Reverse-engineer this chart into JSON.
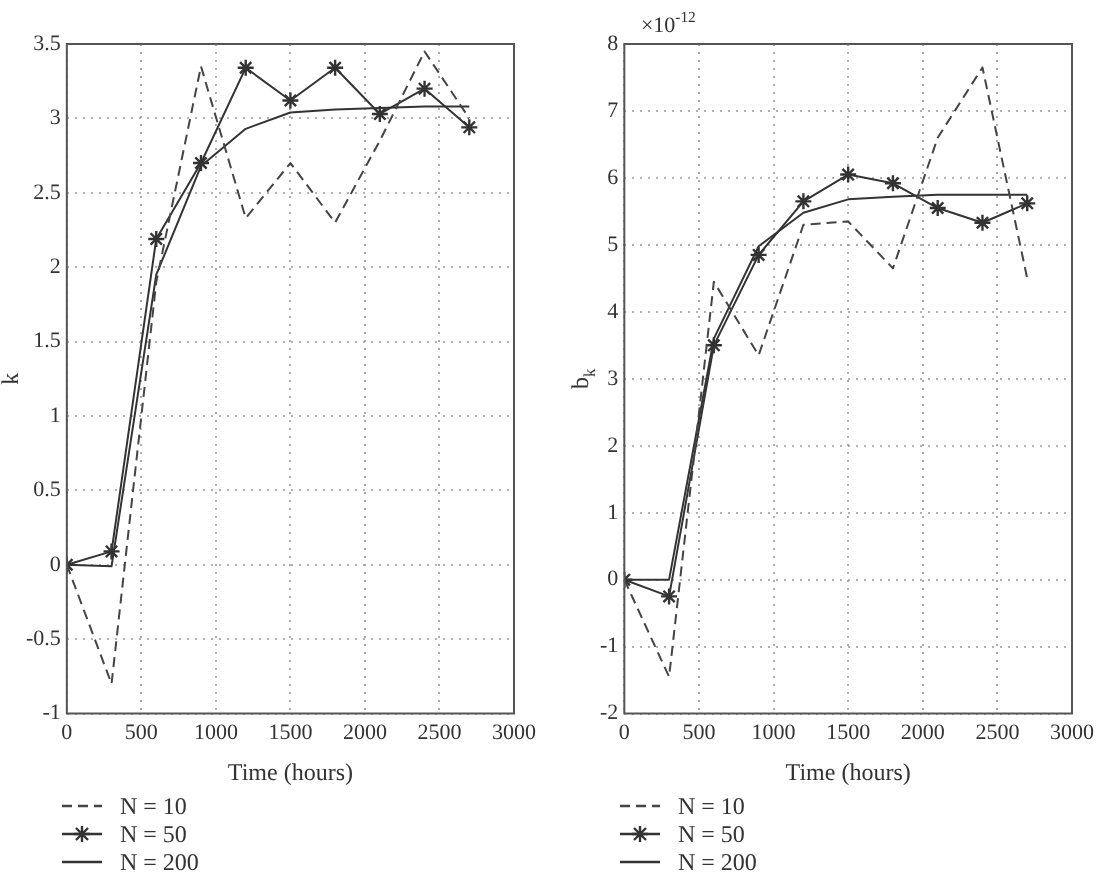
{
  "chart_data": [
    {
      "type": "line",
      "xlabel": "Time (hours)",
      "ylabel": "k",
      "x": [
        0,
        300,
        600,
        900,
        1200,
        1500,
        1800,
        2100,
        2400,
        2700
      ],
      "xlim": [
        0,
        3000
      ],
      "xticks": [
        0,
        500,
        1000,
        1500,
        2000,
        2500,
        3000
      ],
      "ylim": [
        -1,
        3.5
      ],
      "yticks": [
        -1,
        -0.5,
        0,
        0.5,
        1,
        1.5,
        2,
        2.5,
        3,
        3.5
      ],
      "grid": true,
      "legend": "bottom",
      "series": [
        {
          "name": "N = 10",
          "color": "#444444",
          "line_style": "dashed",
          "marker": "none",
          "values": [
            0,
            -0.8,
            1.9,
            3.35,
            2.33,
            2.7,
            2.3,
            2.85,
            3.45,
            3.0
          ]
        },
        {
          "name": "N = 50",
          "color": "#333333",
          "line_style": "solid",
          "marker": "cross",
          "values": [
            0,
            0.09,
            2.19,
            2.7,
            3.34,
            3.12,
            3.34,
            3.03,
            3.2,
            2.94
          ]
        },
        {
          "name": "N = 200",
          "color": "#333333",
          "line_style": "solid",
          "marker": "none",
          "values": [
            0,
            -0.01,
            1.95,
            2.68,
            2.93,
            3.04,
            3.06,
            3.07,
            3.08,
            3.08
          ]
        }
      ]
    },
    {
      "type": "line",
      "xlabel": "Time (hours)",
      "ylabel": "b$_{k}$",
      "annotations": [
        "×10$^{-12}$"
      ],
      "x": [
        0,
        300,
        600,
        900,
        1200,
        1500,
        1800,
        2100,
        2400,
        2700
      ],
      "xlim": [
        0,
        3000
      ],
      "xticks": [
        0,
        500,
        1000,
        1500,
        2000,
        2500,
        3000
      ],
      "ylim": [
        -2,
        8
      ],
      "yticks": [
        -2,
        -1,
        0,
        1,
        2,
        3,
        4,
        5,
        6,
        7,
        8
      ],
      "grid": true,
      "legend": "bottom",
      "series": [
        {
          "name": "N = 10",
          "color": "#444444",
          "line_style": "dashed",
          "marker": "none",
          "values": [
            0,
            -1.45,
            4.45,
            3.35,
            5.3,
            5.35,
            4.65,
            6.6,
            7.65,
            4.5
          ]
        },
        {
          "name": "N = 50",
          "color": "#333333",
          "line_style": "solid",
          "marker": "cross",
          "values": [
            0,
            -0.25,
            3.5,
            4.85,
            5.65,
            6.05,
            5.92,
            5.55,
            5.33,
            5.62
          ]
        },
        {
          "name": "N = 200",
          "color": "#333333",
          "line_style": "solid",
          "marker": "none",
          "values": [
            0,
            0,
            3.6,
            4.98,
            5.48,
            5.68,
            5.72,
            5.75,
            5.75,
            5.75
          ]
        }
      ]
    }
  ]
}
